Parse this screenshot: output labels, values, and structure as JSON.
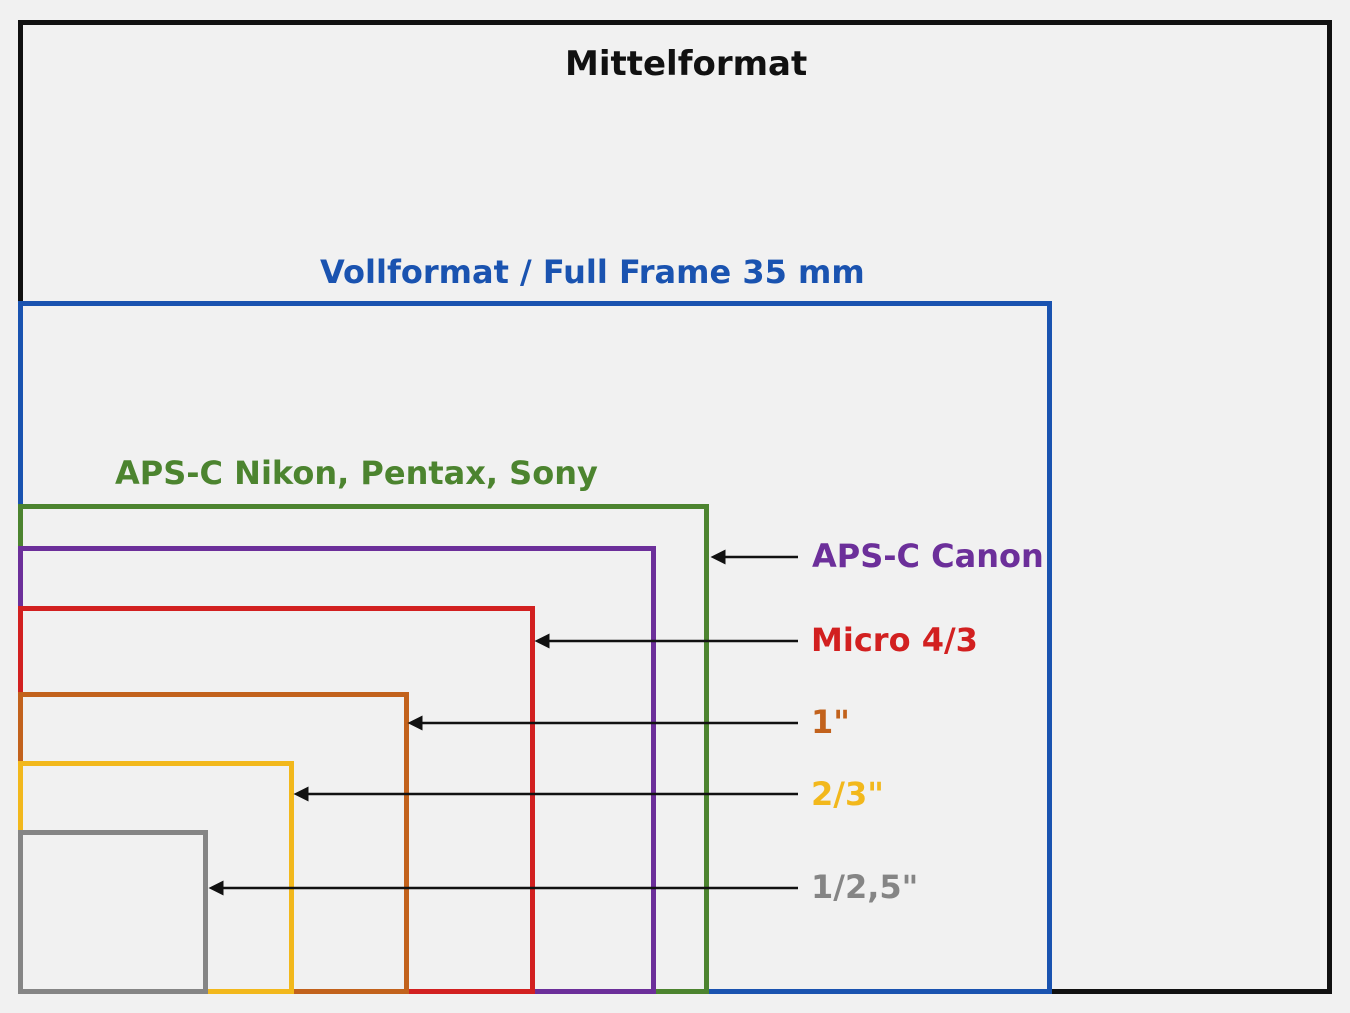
{
  "formats": {
    "medium": {
      "label": "Mittelformat",
      "color": "#111111"
    },
    "full_frame": {
      "label": "Vollformat / Full Frame 35 mm",
      "color": "#1a53b0"
    },
    "apsc_nikon": {
      "label": "APS-C Nikon, Pentax, Sony",
      "color": "#4c842f"
    },
    "apsc_canon": {
      "label": "APS-C Canon",
      "color": "#6c2f9a"
    },
    "micro_four_thirds": {
      "label": "Micro 4/3",
      "color": "#d22020"
    },
    "one_inch": {
      "label": "1\"",
      "color": "#c2621c"
    },
    "two_thirds": {
      "label": "2/3\"",
      "color": "#f2b81c"
    },
    "one_over_2_5": {
      "label": "1/2,5\"",
      "color": "#858585"
    }
  },
  "arrow_color": "#111111"
}
